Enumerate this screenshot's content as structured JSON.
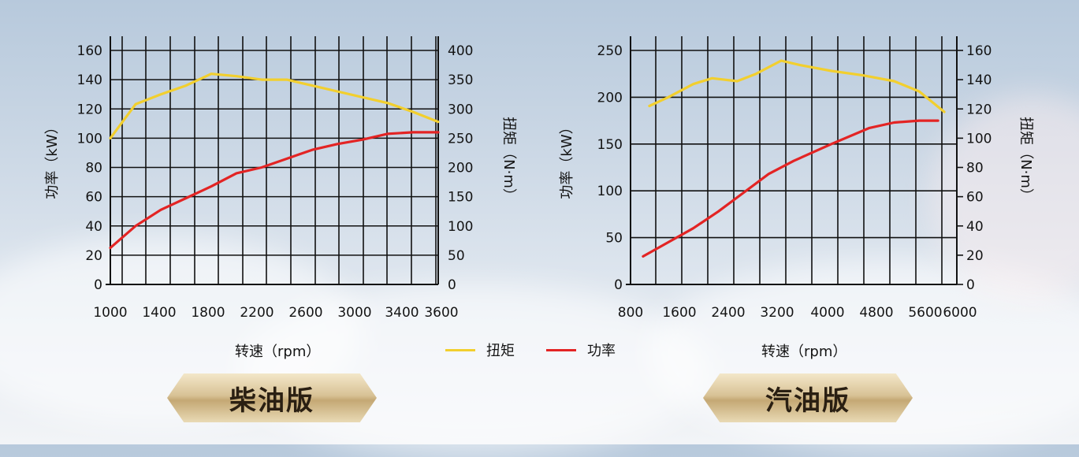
{
  "colors": {
    "torque": "#f2cf2e",
    "power": "#e32424",
    "grid": "#111111"
  },
  "legend": {
    "torque": "扭矩",
    "power": "功率"
  },
  "chart_data": [
    {
      "type": "line",
      "badge": "柴油版",
      "xlabel": "转速（rpm）",
      "ylabel_left": "功率（kW）",
      "ylabel_right": "扭矩（N·m）",
      "xlim": [
        1000,
        3600
      ],
      "xticks": [
        "1000",
        "1400",
        "1800",
        "2200",
        "2600",
        "3000",
        "3400",
        "3600"
      ],
      "ylim_left": [
        0,
        160
      ],
      "yticks_left": [
        "0",
        "20",
        "40",
        "60",
        "80",
        "100",
        "120",
        "140",
        "160"
      ],
      "ylim_right": [
        0,
        400
      ],
      "yticks_right": [
        "0",
        "50",
        "100",
        "150",
        "200",
        "250",
        "300",
        "350",
        "400"
      ],
      "grid": true,
      "series": [
        {
          "name": "扭矩",
          "axis": "right",
          "x": [
            1000,
            1200,
            1400,
            1600,
            1800,
            2000,
            2200,
            2400,
            2600,
            2800,
            3000,
            3200,
            3400,
            3600
          ],
          "y": [
            250,
            308,
            325,
            340,
            360,
            356,
            350,
            350,
            340,
            330,
            320,
            310,
            295,
            278
          ]
        },
        {
          "name": "功率",
          "axis": "left",
          "x": [
            1000,
            1200,
            1400,
            1600,
            1800,
            2000,
            2200,
            2400,
            2600,
            2800,
            3000,
            3200,
            3400,
            3600
          ],
          "y": [
            25,
            40,
            51,
            59,
            67,
            76,
            80,
            86,
            92,
            96,
            99,
            103,
            104,
            104
          ]
        }
      ]
    },
    {
      "type": "line",
      "badge": "汽油版",
      "xlabel": "转速（rpm）",
      "ylabel_left": "功率（kW）",
      "ylabel_right": "扭矩（N·m）",
      "xlim": [
        800,
        6000
      ],
      "xticks": [
        "800",
        "1600",
        "2400",
        "3200",
        "4000",
        "4800",
        "5600",
        "6000"
      ],
      "ylim_left": [
        0,
        250
      ],
      "yticks_left": [
        "0",
        "50",
        "100",
        "150",
        "200",
        "250"
      ],
      "ylim_right": [
        0,
        160
      ],
      "yticks_right": [
        "0",
        "20",
        "40",
        "60",
        "80",
        "100",
        "120",
        "140",
        "160"
      ],
      "grid": true,
      "series": [
        {
          "name": "扭矩",
          "axis": "right",
          "x": [
            1100,
            1400,
            1800,
            2100,
            2500,
            2800,
            3200,
            3500,
            4000,
            4500,
            5000,
            5400,
            5800
          ],
          "y": [
            122,
            128,
            137,
            141,
            139,
            144,
            153,
            150,
            146,
            143,
            139,
            132,
            118
          ]
        },
        {
          "name": "功率",
          "axis": "left",
          "x": [
            1000,
            1400,
            1800,
            2200,
            2600,
            3000,
            3400,
            4000,
            4600,
            5000,
            5400,
            5700
          ],
          "y": [
            30,
            45,
            60,
            78,
            98,
            118,
            132,
            150,
            167,
            173,
            175,
            175
          ]
        }
      ]
    }
  ]
}
